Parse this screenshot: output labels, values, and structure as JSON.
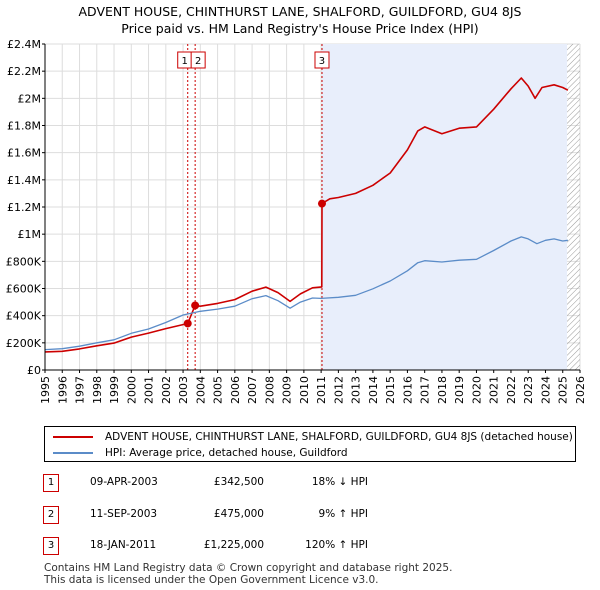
{
  "title": {
    "line1": "ADVENT HOUSE, CHINTHURST LANE, SHALFORD, GUILDFORD, GU4 8JS",
    "line2": "Price paid vs. HM Land Registry's House Price Index (HPI)"
  },
  "chart_data": {
    "type": "line",
    "ylim": [
      0,
      2400000
    ],
    "xlim": [
      1995,
      2026
    ],
    "yticks": [
      0,
      200000,
      400000,
      600000,
      800000,
      1000000,
      1200000,
      1400000,
      1600000,
      1800000,
      2000000,
      2200000,
      2400000
    ],
    "ytick_labels": [
      "£0",
      "£200K",
      "£400K",
      "£600K",
      "£800K",
      "£1M",
      "£1.2M",
      "£1.4M",
      "£1.6M",
      "£1.8M",
      "£2M",
      "£2.2M",
      "£2.4M"
    ],
    "xticks": [
      1995,
      1996,
      1997,
      1998,
      1999,
      2000,
      2001,
      2002,
      2003,
      2004,
      2005,
      2006,
      2007,
      2008,
      2009,
      2010,
      2011,
      2012,
      2013,
      2014,
      2015,
      2016,
      2017,
      2018,
      2019,
      2020,
      2021,
      2022,
      2023,
      2024,
      2025,
      2026
    ],
    "series": [
      {
        "name": "ADVENT HOUSE, CHINTHURST LANE, SHALFORD, GUILDFORD, GU4 8JS (detached house)",
        "color": "#cc0000",
        "points": [
          [
            1995.0,
            133000
          ],
          [
            1996.0,
            138000
          ],
          [
            1997.0,
            155000
          ],
          [
            1998.0,
            178000
          ],
          [
            1999.0,
            198000
          ],
          [
            2000.0,
            242000
          ],
          [
            2001.0,
            272000
          ],
          [
            2002.0,
            305000
          ],
          [
            2003.27,
            342500
          ],
          [
            2003.7,
            475000
          ],
          [
            2004.0,
            470000
          ],
          [
            2005.0,
            490000
          ],
          [
            2006.0,
            518000
          ],
          [
            2007.0,
            580000
          ],
          [
            2007.8,
            610000
          ],
          [
            2008.5,
            570000
          ],
          [
            2009.2,
            505000
          ],
          [
            2009.8,
            560000
          ],
          [
            2010.5,
            605000
          ],
          [
            2011.04,
            612000
          ],
          [
            2011.05,
            1225000
          ],
          [
            2011.5,
            1260000
          ],
          [
            2012.0,
            1270000
          ],
          [
            2013.0,
            1300000
          ],
          [
            2014.0,
            1360000
          ],
          [
            2015.0,
            1450000
          ],
          [
            2016.0,
            1620000
          ],
          [
            2016.6,
            1760000
          ],
          [
            2017.0,
            1790000
          ],
          [
            2018.0,
            1740000
          ],
          [
            2019.0,
            1780000
          ],
          [
            2020.0,
            1790000
          ],
          [
            2021.0,
            1920000
          ],
          [
            2022.0,
            2070000
          ],
          [
            2022.6,
            2150000
          ],
          [
            2023.0,
            2090000
          ],
          [
            2023.4,
            2000000
          ],
          [
            2023.8,
            2080000
          ],
          [
            2024.5,
            2100000
          ],
          [
            2025.0,
            2080000
          ],
          [
            2025.3,
            2060000
          ]
        ]
      },
      {
        "name": "HPI: Average price, detached house, Guildford",
        "color": "#5b8cc8",
        "points": [
          [
            1995.0,
            150000
          ],
          [
            1996.0,
            157000
          ],
          [
            1997.0,
            175000
          ],
          [
            1998.0,
            200000
          ],
          [
            1999.0,
            222000
          ],
          [
            2000.0,
            270000
          ],
          [
            2001.0,
            302000
          ],
          [
            2002.0,
            350000
          ],
          [
            2003.0,
            405000
          ],
          [
            2004.0,
            432000
          ],
          [
            2005.0,
            448000
          ],
          [
            2006.0,
            470000
          ],
          [
            2007.0,
            525000
          ],
          [
            2007.8,
            548000
          ],
          [
            2008.5,
            510000
          ],
          [
            2009.2,
            455000
          ],
          [
            2009.8,
            500000
          ],
          [
            2010.5,
            530000
          ],
          [
            2011.0,
            527000
          ],
          [
            2012.0,
            535000
          ],
          [
            2013.0,
            550000
          ],
          [
            2014.0,
            598000
          ],
          [
            2015.0,
            655000
          ],
          [
            2016.0,
            730000
          ],
          [
            2016.6,
            790000
          ],
          [
            2017.0,
            805000
          ],
          [
            2018.0,
            795000
          ],
          [
            2019.0,
            808000
          ],
          [
            2020.0,
            815000
          ],
          [
            2021.0,
            880000
          ],
          [
            2022.0,
            950000
          ],
          [
            2022.6,
            980000
          ],
          [
            2023.0,
            965000
          ],
          [
            2023.5,
            930000
          ],
          [
            2024.0,
            955000
          ],
          [
            2024.5,
            965000
          ],
          [
            2025.0,
            950000
          ],
          [
            2025.3,
            955000
          ]
        ]
      }
    ],
    "transactions_markers": [
      {
        "label": "1",
        "x": 2003.27,
        "y": 342500
      },
      {
        "label": "2",
        "x": 2003.7,
        "y": 475000
      },
      {
        "label": "3",
        "x": 2011.05,
        "y": 1225000
      }
    ],
    "shaded_from": 2011.05,
    "hatched_from": 2025.25
  },
  "legend": {
    "property": "ADVENT HOUSE, CHINTHURST LANE, SHALFORD, GUILDFORD, GU4 8JS (detached house)",
    "hpi": "HPI: Average price, detached house, Guildford"
  },
  "transactions": [
    {
      "num": "1",
      "date": "09-APR-2003",
      "price": "£342,500",
      "hpi": "18% ↓ HPI"
    },
    {
      "num": "2",
      "date": "11-SEP-2003",
      "price": "£475,000",
      "hpi": "9% ↑ HPI"
    },
    {
      "num": "3",
      "date": "18-JAN-2011",
      "price": "£1,225,000",
      "hpi": "120% ↑ HPI"
    }
  ],
  "footer": {
    "line1": "Contains HM Land Registry data © Crown copyright and database right 2025.",
    "line2": "This data is licensed under the Open Government Licence v3.0."
  }
}
